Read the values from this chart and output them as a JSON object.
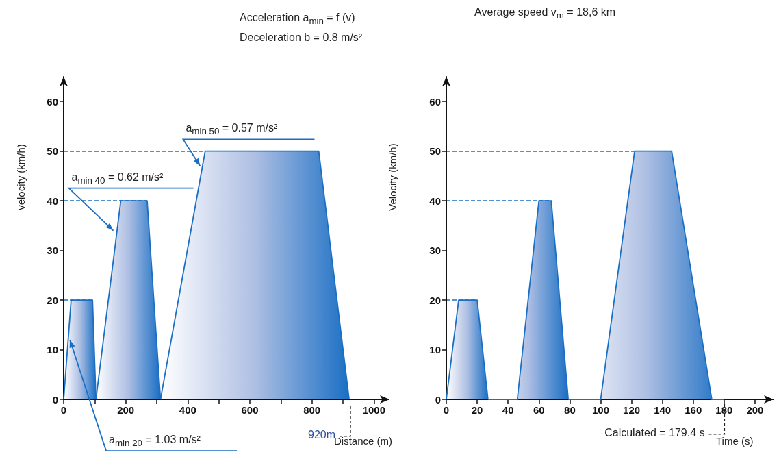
{
  "chart_data": [
    {
      "type": "area",
      "title": "Acceleration a$_{min}$ = f (v)",
      "subtitle": "Deceleration b = 0.8 m/s²",
      "xlabel": "Distance (m)",
      "ylabel": "velocity (km/h)",
      "xlim": [
        0,
        1050
      ],
      "ylim": [
        0,
        65
      ],
      "xticks": [
        0,
        {
          "value": 100,
          "label": null
        },
        200,
        {
          "value": 300,
          "label": null
        },
        400,
        {
          "value": 500,
          "label": null
        },
        600,
        {
          "value": 700,
          "label": null
        },
        800,
        {
          "value": 900,
          "label": null
        },
        1000
      ],
      "yticks": [
        0,
        10,
        20,
        30,
        40,
        50,
        60
      ],
      "marker": "none",
      "series": [
        {
          "color": "#1a6fc4",
          "x": [
            0,
            24,
            93,
            104
          ],
          "values": [
            0,
            20,
            20,
            0
          ]
        },
        {
          "color": "#1a6fc4",
          "x": [
            104,
            184,
            269,
            312
          ],
          "values": [
            0,
            40,
            40,
            0
          ]
        },
        {
          "color": "#1a6fc4",
          "x": [
            312,
            456,
            822,
            920
          ],
          "values": [
            0,
            50,
            50,
            0
          ]
        }
      ],
      "ref_lines": [
        {
          "axis": "y",
          "value": 20,
          "color": "#1a6fc4",
          "line_style": "dashed"
        },
        {
          "axis": "y",
          "value": 40,
          "color": "#1a6fc4",
          "line_style": "dashed"
        },
        {
          "axis": "y",
          "value": 50,
          "color": "#1a6fc4",
          "line_style": "dashed"
        }
      ],
      "annotations": [
        {
          "text": "a$_{min 50}$ = 0.57 m/s²",
          "x": 440,
          "y": 47
        },
        {
          "text": "a$_{min 40}$ = 0.62 m/s²",
          "x": 160,
          "y": 34
        },
        {
          "text": "a$_{min 20}$ = 1.03 m/s²",
          "x": 20,
          "y": 12
        },
        {
          "text": "920m",
          "x": 920,
          "y": 0
        }
      ]
    },
    {
      "type": "area",
      "title": "Average speed v$_{m}$ = 18,6 km",
      "xlabel": "Time (s)",
      "ylabel": "Velocity (km/h)",
      "xlim": [
        0,
        212
      ],
      "ylim": [
        0,
        65
      ],
      "xticks": [
        0,
        20,
        40,
        60,
        80,
        100,
        120,
        140,
        160,
        180,
        200
      ],
      "yticks": [
        0,
        10,
        20,
        30,
        40,
        50,
        60
      ],
      "marker": "none",
      "series": [
        {
          "color": "#1a6fc4",
          "x": [
            0,
            8,
            20,
            27
          ],
          "values": [
            0,
            20,
            20,
            0
          ]
        },
        {
          "color": "#1a6fc4",
          "x": [
            27,
            46,
            60,
            68,
            79
          ],
          "values": [
            0,
            0,
            40,
            40,
            0
          ]
        },
        {
          "color": "#1a6fc4",
          "x": [
            79,
            100,
            122,
            146,
            172,
            180
          ],
          "values": [
            0,
            0,
            50,
            50,
            0,
            0
          ]
        }
      ],
      "ref_lines": [
        {
          "axis": "y",
          "value": 20,
          "color": "#1a6fc4",
          "line_style": "dashed"
        },
        {
          "axis": "y",
          "value": 40,
          "color": "#1a6fc4",
          "line_style": "dashed"
        },
        {
          "axis": "y",
          "value": 50,
          "color": "#1a6fc4",
          "line_style": "dashed"
        }
      ],
      "annotations": [
        {
          "text": "Calculated = 179.4 s",
          "x": 179.4,
          "y": 0
        }
      ]
    }
  ]
}
